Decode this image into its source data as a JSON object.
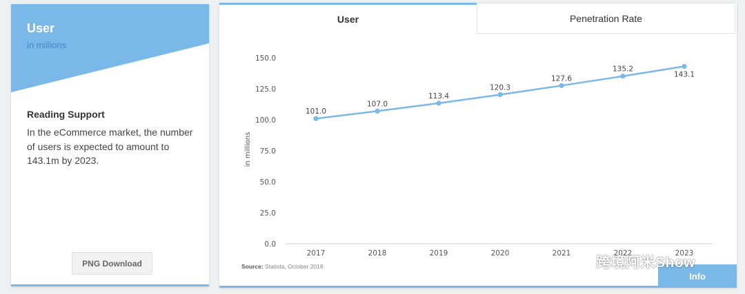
{
  "left_panel": {
    "title": "User",
    "subtitle": "in millions",
    "support_heading": "Reading Support",
    "support_text": "In the eCommerce market, the number of users is expected to amount to 143.1m by 2023.",
    "png_button": "PNG Download",
    "banner_color": "#7ab8e8"
  },
  "tabs": [
    {
      "label": "User",
      "active": true
    },
    {
      "label": "Penetration Rate",
      "active": false
    }
  ],
  "chart_data": {
    "type": "line",
    "x": [
      "2017",
      "2018",
      "2019",
      "2020",
      "2021",
      "2022",
      "2023"
    ],
    "series": [
      {
        "values": [
          101.0,
          107.0,
          113.4,
          120.3,
          127.6,
          135.2,
          143.1
        ],
        "color": "#7ab8e8"
      }
    ],
    "data_labels": [
      "101.0",
      "107.0",
      "113.4",
      "120.3",
      "127.6",
      "135.2",
      "143.1"
    ],
    "ylabel": "in millions",
    "yticks": [
      "0.0",
      "25.0",
      "50.0",
      "75.0",
      "100.0",
      "125.0",
      "150.0"
    ],
    "ylim": [
      0,
      150
    ],
    "grid": false
  },
  "source": {
    "label": "Source:",
    "text": "Statista, October 2018"
  },
  "info_button": "Info",
  "watermark": "跨境阿米Show"
}
